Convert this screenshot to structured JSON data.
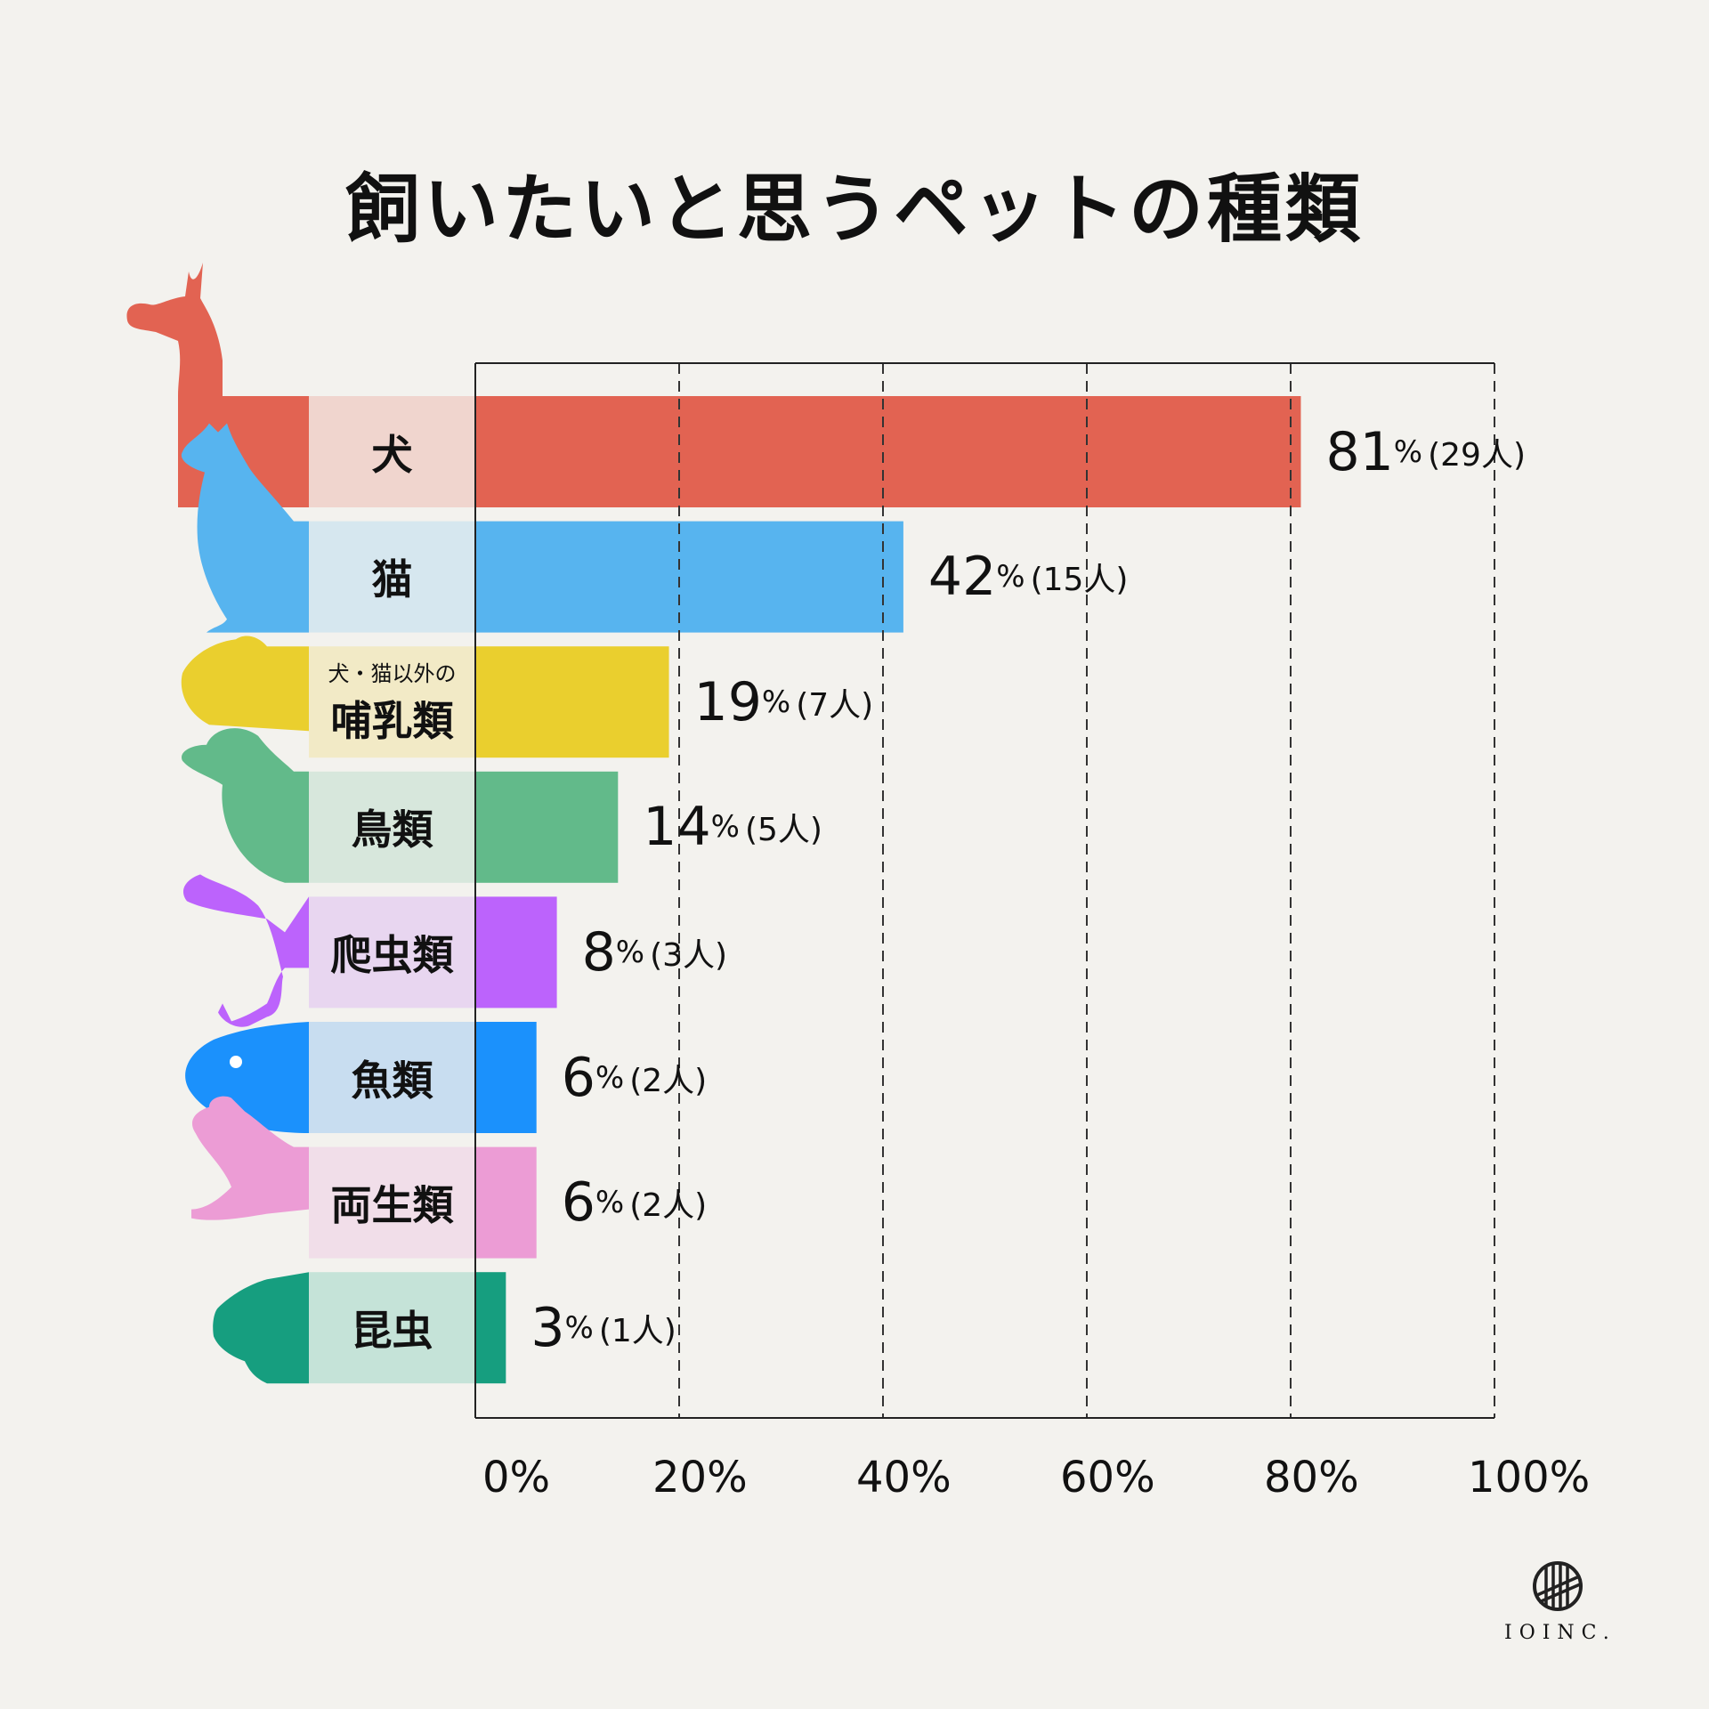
{
  "title": "飼いたいと思うペットの種類",
  "chart_data": {
    "type": "bar",
    "orientation": "horizontal",
    "title": "飼いたいと思うペットの種類",
    "categories": [
      {
        "label": "犬",
        "sub": ""
      },
      {
        "label": "猫",
        "sub": ""
      },
      {
        "label": "哺乳類",
        "sub": "犬・猫以外の"
      },
      {
        "label": "鳥類",
        "sub": ""
      },
      {
        "label": "爬虫類",
        "sub": ""
      },
      {
        "label": "魚類",
        "sub": ""
      },
      {
        "label": "両生類",
        "sub": ""
      },
      {
        "label": "昆虫",
        "sub": ""
      }
    ],
    "values": [
      81,
      42,
      19,
      14,
      8,
      6,
      6,
      3
    ],
    "value_labels": [
      "81",
      "42",
      "19",
      "14",
      "8",
      "6",
      "6",
      "3"
    ],
    "count_labels": [
      "(29人)",
      "(15人)",
      "(7人)",
      "(5人)",
      "(3人)",
      "(2人)",
      "(2人)",
      "(1人)"
    ],
    "percent_sign": "%",
    "xlim": [
      0,
      100
    ],
    "xticks": [
      "0%",
      "20%",
      "40%",
      "60%",
      "80%",
      "100%"
    ],
    "grid": "vertical dashed",
    "icons": [
      "dog-icon",
      "cat-icon",
      "hamster-icon",
      "bird-icon",
      "lizard-icon",
      "fish-icon",
      "frog-icon",
      "beetle-icon"
    ],
    "colors": [
      "#E26352",
      "#57B4EF",
      "#EACF2E",
      "#62BA8A",
      "#BC63FC",
      "#1B91FC",
      "#EC9CD5",
      "#169E7F"
    ],
    "light_colors": [
      "#F0D5CE",
      "#D6E7EF",
      "#F2EAC6",
      "#D7E7DC",
      "#E8D6F0",
      "#C8DDF0",
      "#F1DEE9",
      "#C5E3D8"
    ]
  },
  "logo": {
    "text": "IOINC."
  }
}
